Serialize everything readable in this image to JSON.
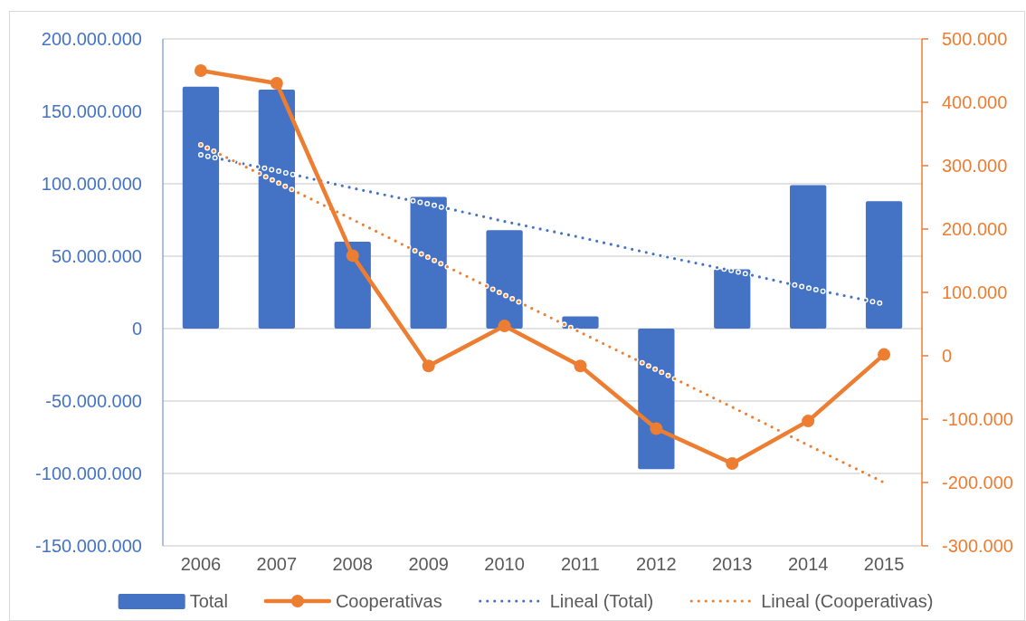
{
  "chart_data": {
    "type": "bar",
    "categories": [
      "2006",
      "2007",
      "2008",
      "2009",
      "2010",
      "2011",
      "2012",
      "2013",
      "2014",
      "2015"
    ],
    "series": [
      {
        "name": "Total",
        "color": "#4472c4",
        "values": [
          167000000,
          165000000,
          60000000,
          91000000,
          68000000,
          8500000,
          -97000000,
          41000000,
          99000000,
          88000000
        ]
      },
      {
        "name": "Cooperativas",
        "type": "line",
        "axis": "y2",
        "color": "#ed7d31",
        "marker": "circle",
        "values": [
          450000,
          430000,
          158000,
          -16000,
          47000,
          -16000,
          -115000,
          -170000,
          -103000,
          2000
        ]
      },
      {
        "name": "Lineal (Total)",
        "type": "line",
        "color": "#4472c4",
        "line_style": "dotted",
        "values": [
          120000000,
          109000000,
          97000000,
          86000000,
          74000000,
          63000000,
          51000000,
          40000000,
          28000000,
          17000000
        ]
      },
      {
        "name": "Lineal (Cooperativas)",
        "type": "line",
        "axis": "y2",
        "color": "#ed7d31",
        "line_style": "dotted",
        "values": [
          333000,
          274000,
          215000,
          155000,
          96000,
          37000,
          -22000,
          -81000,
          -141000,
          -200000
        ]
      }
    ],
    "ylim": [
      -150000000,
      200000000
    ],
    "yticks": [
      {
        "value": -150000000,
        "label": "-150.000.000"
      },
      {
        "value": -100000000,
        "label": "-100.000.000"
      },
      {
        "value": -50000000,
        "label": "-50.000.000"
      },
      0,
      {
        "value": 50000000,
        "label": "50.000.000"
      },
      {
        "value": 100000000,
        "label": "100.000.000"
      },
      {
        "value": 150000000,
        "label": "150.000.000"
      },
      {
        "value": 200000000,
        "label": "200.000.000"
      }
    ],
    "y2lim": [
      -300000,
      500000
    ],
    "y2ticks": [
      {
        "value": -300000,
        "label": "-300.000"
      },
      {
        "value": -200000,
        "label": "-200.000"
      },
      {
        "value": -100000,
        "label": "-100.000"
      },
      0,
      {
        "value": 100000,
        "label": "100.000"
      },
      {
        "value": 200000,
        "label": "200.000"
      },
      {
        "value": 300000,
        "label": "300.000"
      },
      {
        "value": 400000,
        "label": "400.000"
      },
      {
        "value": 500000,
        "label": "500.000"
      }
    ],
    "grid": "y",
    "legend": "bottom"
  }
}
